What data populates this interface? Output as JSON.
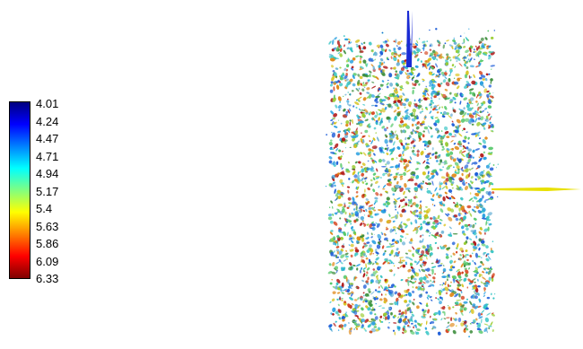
{
  "colorbar": {
    "labels": [
      "4.01",
      "4.24",
      "4.47",
      "4.71",
      "4.94",
      "5.17",
      "5.4",
      "5.63",
      "5.86",
      "6.09",
      "6.33"
    ],
    "min": 4.01,
    "max": 6.33,
    "colormap": [
      "#00007f",
      "#0000ff",
      "#0080ff",
      "#00ffff",
      "#80ff80",
      "#ffff00",
      "#ff8000",
      "#ff0000",
      "#7f0000"
    ],
    "orientation": "low-at-top"
  },
  "scene": {
    "object": "cylindrical-isosurface-cloud",
    "axis_colors": {
      "vertical": "#1a2bd4",
      "horizontal": "#e8e000"
    }
  }
}
